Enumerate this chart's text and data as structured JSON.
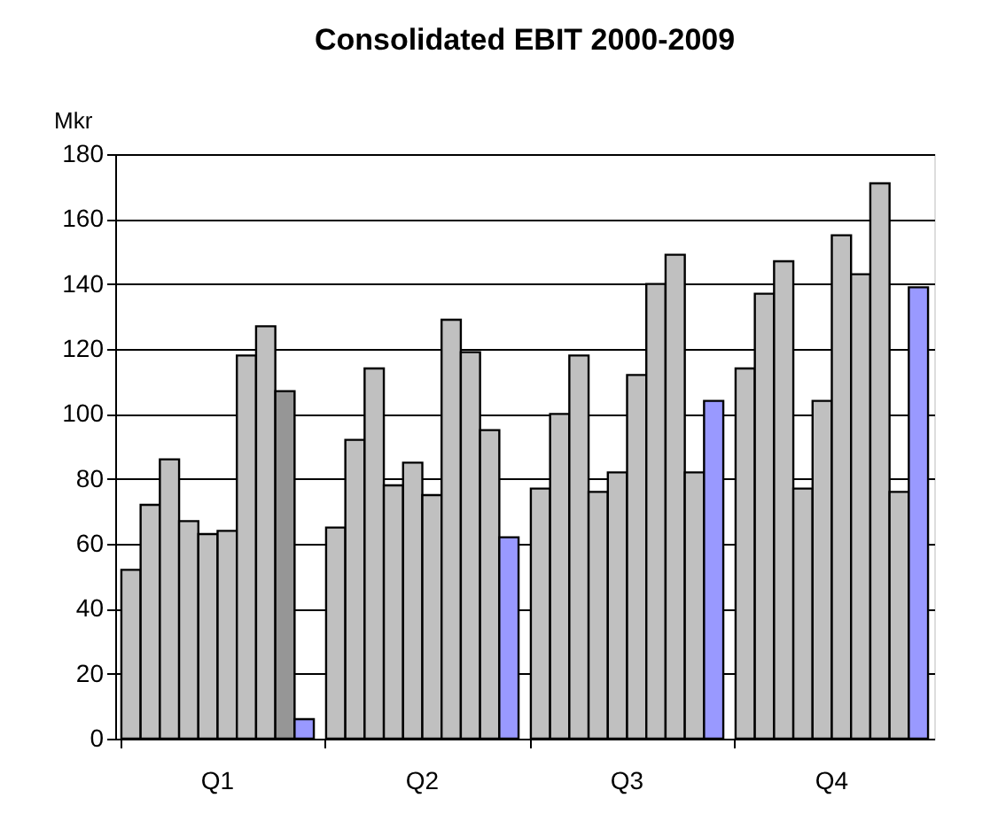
{
  "chart_data": {
    "type": "bar",
    "title": "Consolidated EBIT 2000-2009",
    "ylabel": "Mkr",
    "categories": [
      "Q1",
      "Q2",
      "Q3",
      "Q4"
    ],
    "series": [
      {
        "color": "#c0c0c0",
        "values": [
          52,
          65,
          77,
          114
        ]
      },
      {
        "color": "#c0c0c0",
        "values": [
          72,
          92,
          100,
          137
        ]
      },
      {
        "color": "#c0c0c0",
        "values": [
          86,
          114,
          118,
          147
        ]
      },
      {
        "color": "#c0c0c0",
        "values": [
          67,
          78,
          76,
          77
        ]
      },
      {
        "color": "#c0c0c0",
        "values": [
          63,
          85,
          82,
          104
        ]
      },
      {
        "color": "#c0c0c0",
        "values": [
          64,
          75,
          112,
          155
        ]
      },
      {
        "color": "#c0c0c0",
        "values": [
          118,
          129,
          140,
          143
        ]
      },
      {
        "color": "#c0c0c0",
        "values": [
          127,
          119,
          149,
          171
        ]
      },
      {
        "colors": [
          "#969696",
          "#c0c0c0",
          "#c0c0c0",
          "#c0c0c0"
        ],
        "values": [
          107,
          95,
          82,
          76
        ]
      },
      {
        "color": "#9999ff",
        "values": [
          6,
          62,
          104,
          139
        ]
      }
    ],
    "ylim": [
      0,
      180
    ],
    "yticks": [
      0,
      20,
      40,
      60,
      80,
      100,
      120,
      140,
      160,
      180
    ],
    "grid": "y"
  }
}
